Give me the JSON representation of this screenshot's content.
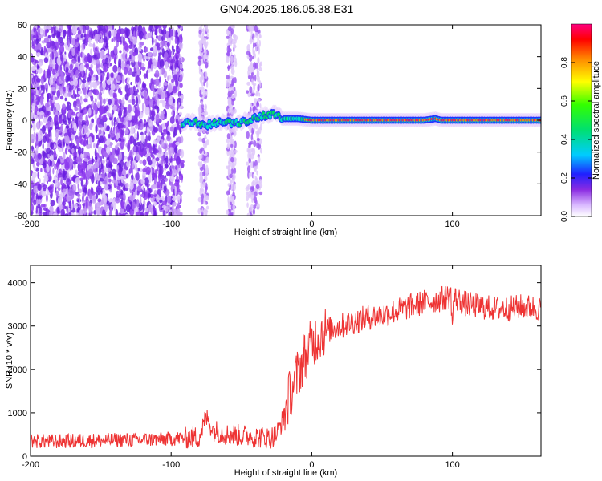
{
  "title": "GN04.2025.186.05.38.E31",
  "chart_data": [
    {
      "type": "heatmap",
      "xlabel": "Height of straight line (km)",
      "ylabel": "Frequency (Hz)",
      "xlim": [
        -200,
        163
      ],
      "ylim": [
        -60,
        60
      ],
      "xticks": [
        -200,
        -100,
        0,
        100
      ],
      "yticks": [
        -60,
        -40,
        -20,
        0,
        20,
        40,
        60
      ],
      "colorbar": {
        "label": "Normalized spectral amplitude",
        "range": [
          0.0,
          1.0
        ],
        "ticks": [
          0.0,
          0.2,
          0.4,
          0.6,
          0.8
        ]
      },
      "ridge": [
        {
          "x": -92,
          "y": -2
        },
        {
          "x": -85,
          "y": -1
        },
        {
          "x": -75,
          "y": -3
        },
        {
          "x": -65,
          "y": -1
        },
        {
          "x": -55,
          "y": -2
        },
        {
          "x": -45,
          "y": 0
        },
        {
          "x": -35,
          "y": 3
        },
        {
          "x": -25,
          "y": 4
        },
        {
          "x": -20,
          "y": 1
        },
        {
          "x": -10,
          "y": 1
        },
        {
          "x": 0,
          "y": 0
        },
        {
          "x": 20,
          "y": 0
        },
        {
          "x": 40,
          "y": 0
        },
        {
          "x": 60,
          "y": 0
        },
        {
          "x": 80,
          "y": 0
        },
        {
          "x": 88,
          "y": 1
        },
        {
          "x": 92,
          "y": 0
        },
        {
          "x": 110,
          "y": 0
        },
        {
          "x": 130,
          "y": 0
        },
        {
          "x": 163,
          "y": 0
        }
      ],
      "noise_region": [
        -200,
        -92
      ]
    },
    {
      "type": "line",
      "xlabel": "Height of straight line (km)",
      "ylabel": "SNR (10 * v/v)",
      "xlim": [
        -200,
        163
      ],
      "ylim": [
        0,
        4400
      ],
      "xticks": [
        -200,
        -100,
        0,
        100
      ],
      "yticks": [
        0,
        1000,
        2000,
        3000,
        4000
      ],
      "color": "#ee3333",
      "series": [
        {
          "x": [
            -200,
            -180,
            -160,
            -140,
            -120,
            -100,
            -90,
            -80,
            -75,
            -70,
            -60,
            -50,
            -40,
            -30,
            -25,
            -20,
            -15,
            -10,
            -5,
            0,
            5,
            10,
            20,
            30,
            40,
            50,
            60,
            70,
            80,
            90,
            99,
            100,
            101,
            110,
            120,
            130,
            140,
            150,
            163
          ],
          "values": [
            350,
            340,
            360,
            370,
            380,
            400,
            420,
            450,
            900,
            600,
            500,
            480,
            450,
            420,
            500,
            900,
            1500,
            1900,
            2300,
            2600,
            2800,
            2900,
            3000,
            3100,
            3200,
            3250,
            3350,
            3450,
            3550,
            3600,
            3700,
            3000,
            3650,
            3500,
            3450,
            3400,
            3400,
            3450,
            3400
          ]
        }
      ]
    }
  ]
}
